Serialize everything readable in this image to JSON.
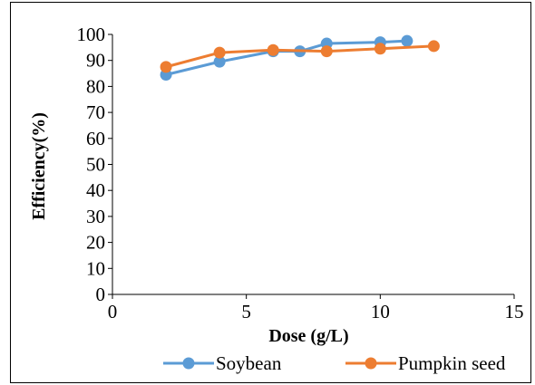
{
  "chart_data": {
    "type": "line",
    "title": "",
    "xlabel": "Dose (g/L)",
    "ylabel": "Efficiency(%)",
    "xlim": [
      0,
      15
    ],
    "ylim": [
      0,
      100
    ],
    "xticks": [
      "0",
      "5",
      "10",
      "15"
    ],
    "yticks": [
      "0",
      "10",
      "20",
      "30",
      "40",
      "50",
      "60",
      "70",
      "80",
      "90",
      "100"
    ],
    "grid": false,
    "legend_position": "bottom",
    "series": [
      {
        "name": "Soybean",
        "color": "#5B9BD5",
        "x": [
          2,
          4,
          6,
          7,
          8,
          10,
          11
        ],
        "y": [
          84.5,
          89.5,
          93.5,
          93.5,
          96.5,
          97,
          97.5
        ]
      },
      {
        "name": "Pumpkin seed",
        "color": "#ED7D31",
        "x": [
          2,
          4,
          6,
          8,
          10,
          12
        ],
        "y": [
          87.5,
          93,
          94,
          93.5,
          94.5,
          95.5
        ]
      }
    ]
  }
}
